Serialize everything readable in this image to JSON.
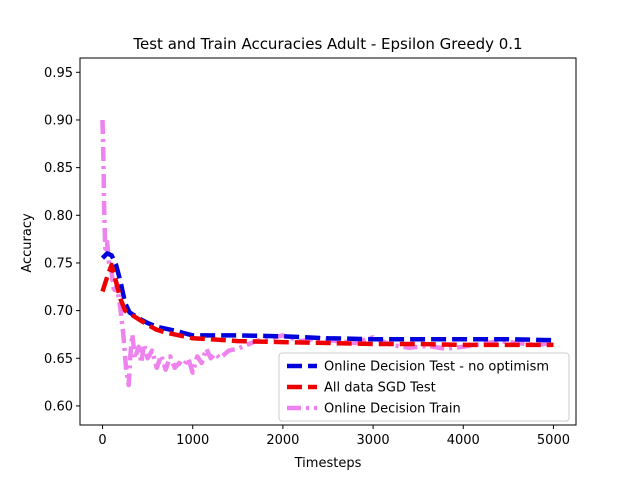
{
  "chart_data": {
    "type": "line",
    "title": "Test and Train Accuracies Adult - Epsilon Greedy 0.1",
    "xlabel": "Timesteps",
    "ylabel": "Accuracy",
    "xlim": [
      -250,
      5250
    ],
    "ylim": [
      0.58,
      0.965
    ],
    "xticks": [
      0,
      1000,
      2000,
      3000,
      4000,
      5000
    ],
    "yticks": [
      0.6,
      0.65,
      0.7,
      0.75,
      0.8,
      0.85,
      0.9,
      0.95
    ],
    "xtick_labels": [
      "0",
      "1000",
      "2000",
      "3000",
      "4000",
      "5000"
    ],
    "ytick_labels": [
      "0.60",
      "0.65",
      "0.70",
      "0.75",
      "0.80",
      "0.85",
      "0.90",
      "0.95"
    ],
    "grid": false,
    "legend_position": "lower-right",
    "series": [
      {
        "name": "Online Decision Test - no optimism",
        "color": "#0000dd",
        "dash": "dashed",
        "x": [
          0,
          50,
          100,
          150,
          200,
          250,
          300,
          400,
          500,
          600,
          700,
          800,
          1000,
          1200,
          1500,
          2000,
          2500,
          3000,
          3500,
          4000,
          4500,
          5000
        ],
        "y": [
          0.755,
          0.76,
          0.758,
          0.748,
          0.73,
          0.708,
          0.698,
          0.692,
          0.687,
          0.683,
          0.681,
          0.679,
          0.674,
          0.674,
          0.674,
          0.673,
          0.671,
          0.67,
          0.67,
          0.67,
          0.67,
          0.669
        ]
      },
      {
        "name": "All data SGD Test",
        "color": "#ee0000",
        "dash": "dashed",
        "x": [
          0,
          50,
          100,
          150,
          200,
          250,
          300,
          400,
          500,
          600,
          700,
          800,
          1000,
          1200,
          1500,
          2000,
          2500,
          3000,
          3500,
          4000,
          4500,
          5000
        ],
        "y": [
          0.72,
          0.735,
          0.748,
          0.73,
          0.712,
          0.7,
          0.697,
          0.691,
          0.685,
          0.68,
          0.677,
          0.675,
          0.671,
          0.67,
          0.668,
          0.667,
          0.666,
          0.665,
          0.665,
          0.664,
          0.664,
          0.664
        ]
      },
      {
        "name": "Online Decision Train",
        "color": "#ee82ee",
        "dash": "dashdot",
        "x": [
          0,
          10,
          20,
          30,
          50,
          70,
          100,
          130,
          160,
          200,
          230,
          260,
          290,
          310,
          330,
          360,
          400,
          430,
          460,
          500,
          550,
          600,
          650,
          700,
          750,
          800,
          850,
          900,
          950,
          1000,
          1050,
          1100,
          1150,
          1200,
          1250,
          1300,
          1400,
          1500,
          1600,
          1700,
          1800,
          1900,
          2000,
          2200,
          2400,
          2600,
          2800,
          3000,
          3200,
          3400,
          3600,
          3800,
          4000,
          4200,
          4400,
          4600,
          4800,
          5000
        ],
        "y": [
          0.9,
          0.86,
          0.8,
          0.765,
          0.772,
          0.75,
          0.74,
          0.718,
          0.728,
          0.7,
          0.675,
          0.64,
          0.622,
          0.655,
          0.675,
          0.65,
          0.662,
          0.645,
          0.665,
          0.65,
          0.658,
          0.64,
          0.653,
          0.638,
          0.652,
          0.64,
          0.645,
          0.642,
          0.65,
          0.635,
          0.652,
          0.645,
          0.66,
          0.65,
          0.655,
          0.65,
          0.658,
          0.66,
          0.664,
          0.668,
          0.67,
          0.672,
          0.674,
          0.668,
          0.671,
          0.668,
          0.666,
          0.672,
          0.664,
          0.661,
          0.663,
          0.66,
          0.662,
          0.665,
          0.668,
          0.666,
          0.664,
          0.666
        ]
      }
    ]
  }
}
